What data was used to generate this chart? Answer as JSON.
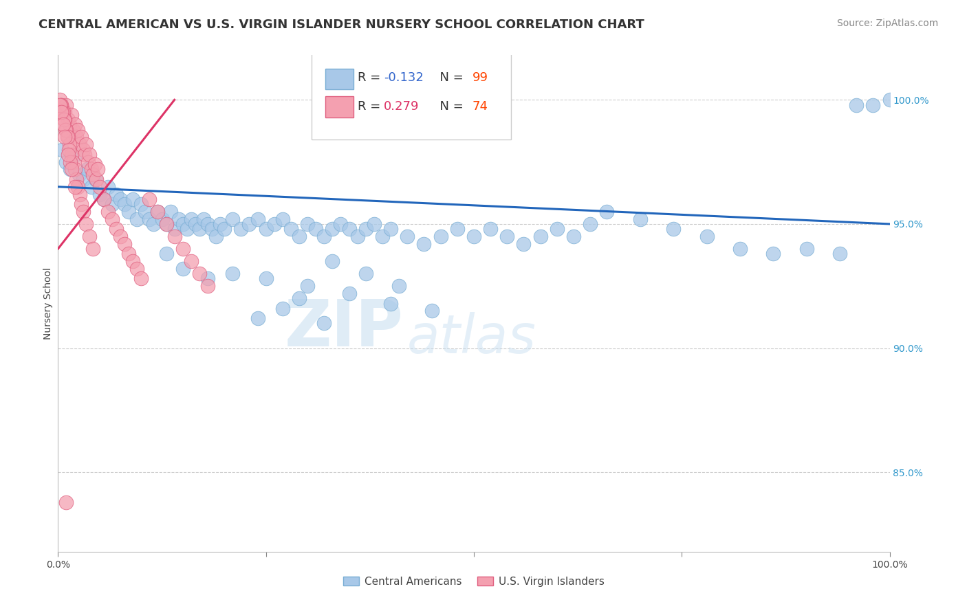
{
  "title": "CENTRAL AMERICAN VS U.S. VIRGIN ISLANDER NURSERY SCHOOL CORRELATION CHART",
  "source": "Source: ZipAtlas.com",
  "ylabel": "Nursery School",
  "watermark_zip": "ZIP",
  "watermark_atlas": "atlas",
  "legend_blue_label": "Central Americans",
  "legend_pink_label": "U.S. Virgin Islanders",
  "blue_R": "-0.132",
  "blue_N": "99",
  "pink_R": "0.279",
  "pink_N": "74",
  "blue_color": "#a8c8e8",
  "blue_edge": "#7aaed4",
  "pink_color": "#f4a0b0",
  "pink_edge": "#e06080",
  "trend_blue_color": "#2266bb",
  "trend_pink_color": "#dd3366",
  "R_color": "#3366cc",
  "N_color": "#ff4400",
  "xmin": 0.0,
  "xmax": 1.0,
  "ymin": 0.818,
  "ymax": 1.018,
  "yticks": [
    0.85,
    0.9,
    0.95,
    1.0
  ],
  "ytick_labels": [
    "85.0%",
    "90.0%",
    "95.0%",
    "100.0%"
  ],
  "blue_x": [
    0.005,
    0.01,
    0.015,
    0.02,
    0.025,
    0.03,
    0.035,
    0.04,
    0.045,
    0.05,
    0.055,
    0.06,
    0.065,
    0.07,
    0.075,
    0.08,
    0.085,
    0.09,
    0.095,
    0.1,
    0.105,
    0.11,
    0.115,
    0.12,
    0.125,
    0.13,
    0.135,
    0.14,
    0.145,
    0.15,
    0.155,
    0.16,
    0.165,
    0.17,
    0.175,
    0.18,
    0.185,
    0.19,
    0.195,
    0.2,
    0.21,
    0.22,
    0.23,
    0.24,
    0.25,
    0.26,
    0.27,
    0.28,
    0.29,
    0.3,
    0.31,
    0.32,
    0.33,
    0.34,
    0.35,
    0.36,
    0.37,
    0.38,
    0.39,
    0.4,
    0.42,
    0.44,
    0.46,
    0.48,
    0.5,
    0.52,
    0.54,
    0.56,
    0.58,
    0.6,
    0.62,
    0.64,
    0.66,
    0.7,
    0.74,
    0.78,
    0.82,
    0.86,
    0.9,
    0.94,
    0.96,
    0.98,
    1.0,
    0.13,
    0.15,
    0.18,
    0.21,
    0.25,
    0.3,
    0.35,
    0.4,
    0.45,
    0.33,
    0.37,
    0.41,
    0.29,
    0.27,
    0.24,
    0.32
  ],
  "blue_y": [
    0.98,
    0.975,
    0.972,
    0.978,
    0.97,
    0.968,
    0.972,
    0.965,
    0.968,
    0.962,
    0.96,
    0.965,
    0.958,
    0.962,
    0.96,
    0.958,
    0.955,
    0.96,
    0.952,
    0.958,
    0.955,
    0.952,
    0.95,
    0.955,
    0.952,
    0.95,
    0.955,
    0.948,
    0.952,
    0.95,
    0.948,
    0.952,
    0.95,
    0.948,
    0.952,
    0.95,
    0.948,
    0.945,
    0.95,
    0.948,
    0.952,
    0.948,
    0.95,
    0.952,
    0.948,
    0.95,
    0.952,
    0.948,
    0.945,
    0.95,
    0.948,
    0.945,
    0.948,
    0.95,
    0.948,
    0.945,
    0.948,
    0.95,
    0.945,
    0.948,
    0.945,
    0.942,
    0.945,
    0.948,
    0.945,
    0.948,
    0.945,
    0.942,
    0.945,
    0.948,
    0.945,
    0.95,
    0.955,
    0.952,
    0.948,
    0.945,
    0.94,
    0.938,
    0.94,
    0.938,
    0.998,
    0.998,
    1.0,
    0.938,
    0.932,
    0.928,
    0.93,
    0.928,
    0.925,
    0.922,
    0.918,
    0.915,
    0.935,
    0.93,
    0.925,
    0.92,
    0.916,
    0.912,
    0.91
  ],
  "pink_x": [
    0.002,
    0.004,
    0.006,
    0.008,
    0.01,
    0.012,
    0.014,
    0.016,
    0.018,
    0.02,
    0.022,
    0.024,
    0.026,
    0.028,
    0.03,
    0.032,
    0.034,
    0.036,
    0.038,
    0.04,
    0.042,
    0.044,
    0.046,
    0.048,
    0.05,
    0.055,
    0.06,
    0.065,
    0.07,
    0.075,
    0.08,
    0.085,
    0.09,
    0.095,
    0.1,
    0.11,
    0.12,
    0.13,
    0.14,
    0.15,
    0.16,
    0.17,
    0.18,
    0.004,
    0.006,
    0.008,
    0.01,
    0.012,
    0.014,
    0.016,
    0.018,
    0.02,
    0.022,
    0.024,
    0.026,
    0.028,
    0.03,
    0.034,
    0.038,
    0.042,
    0.003,
    0.005,
    0.007,
    0.009,
    0.011,
    0.013,
    0.015,
    0.002,
    0.004,
    0.006,
    0.008,
    0.012,
    0.016,
    0.02
  ],
  "pink_y": [
    1.0,
    0.998,
    0.996,
    0.995,
    0.998,
    0.992,
    0.99,
    0.994,
    0.988,
    0.99,
    0.985,
    0.988,
    0.982,
    0.985,
    0.98,
    0.978,
    0.982,
    0.975,
    0.978,
    0.972,
    0.97,
    0.974,
    0.968,
    0.972,
    0.965,
    0.96,
    0.955,
    0.952,
    0.948,
    0.945,
    0.942,
    0.938,
    0.935,
    0.932,
    0.928,
    0.96,
    0.955,
    0.95,
    0.945,
    0.94,
    0.935,
    0.93,
    0.925,
    0.998,
    0.995,
    0.992,
    0.988,
    0.985,
    0.982,
    0.978,
    0.975,
    0.972,
    0.968,
    0.965,
    0.962,
    0.958,
    0.955,
    0.95,
    0.945,
    0.94,
    0.998,
    0.995,
    0.992,
    0.988,
    0.985,
    0.98,
    0.975,
    0.998,
    0.995,
    0.99,
    0.985,
    0.978,
    0.972,
    0.965
  ],
  "pink_outlier_x": [
    0.01
  ],
  "pink_outlier_y": [
    0.838
  ],
  "title_fontsize": 13,
  "axis_label_fontsize": 10,
  "tick_fontsize": 10,
  "legend_fontsize": 13,
  "source_fontsize": 10
}
